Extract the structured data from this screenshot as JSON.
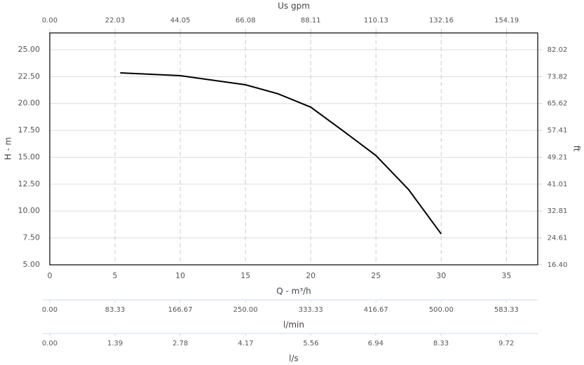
{
  "chart_data": {
    "type": "line",
    "x_label": "Q - m³/h",
    "y_label": "H - m",
    "xlim": [
      0,
      37.4
    ],
    "xticks": [
      0,
      5,
      10,
      15,
      20,
      25,
      30,
      35
    ],
    "ylim": [
      5,
      26.56
    ],
    "yticks": [
      {
        "value": 5,
        "label": "5.00"
      },
      {
        "value": 7.5,
        "label": "7.50"
      },
      {
        "value": 10,
        "label": "10.00"
      },
      {
        "value": 12.5,
        "label": "12.50"
      },
      {
        "value": 15,
        "label": "15.00"
      },
      {
        "value": 17.5,
        "label": "17.50"
      },
      {
        "value": 20,
        "label": "20.00"
      },
      {
        "value": 22.5,
        "label": "22.50"
      },
      {
        "value": 25,
        "label": "25.00"
      }
    ],
    "grid": true,
    "x": [
      5.4,
      10,
      15,
      17.5,
      20,
      22.5,
      25,
      27.5,
      30
    ],
    "series": [
      {
        "color": "#000000",
        "values": [
          22.85,
          22.59,
          21.74,
          20.9,
          19.66,
          17.44,
          15.16,
          12.0,
          7.87
        ]
      }
    ],
    "top_axis": {
      "label": "Us gpm",
      "lim": [
        0,
        164.7
      ],
      "ticks": [
        {
          "value": 0,
          "label": "0.00"
        },
        22.03,
        44.05,
        66.08,
        88.11,
        110.13,
        132.16,
        154.19
      ]
    },
    "right_axis": {
      "label": "ft",
      "lim": [
        16.4,
        87.14
      ],
      "ticks": [
        {
          "value": 16.4,
          "label": "16.40"
        },
        24.61,
        32.81,
        41.01,
        49.21,
        57.41,
        65.62,
        73.82,
        82.02
      ]
    },
    "extra_axes": [
      {
        "label": "l/min",
        "lim": [
          0,
          623.3
        ],
        "ticks": [
          {
            "value": 0,
            "label": "0.00"
          },
          83.33,
          166.67,
          {
            "value": 250,
            "label": "250.00"
          },
          333.33,
          416.67,
          {
            "value": 500,
            "label": "500.00"
          },
          583.33
        ]
      },
      {
        "label": "l/s",
        "lim": [
          0,
          10.39
        ],
        "ticks": [
          {
            "value": 0,
            "label": "0.00"
          },
          1.39,
          2.78,
          4.17,
          5.56,
          6.94,
          8.33,
          9.72
        ]
      }
    ]
  }
}
